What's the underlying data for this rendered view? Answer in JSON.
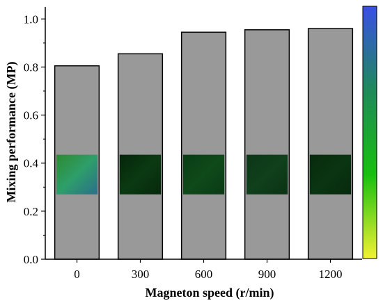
{
  "chart_data": {
    "type": "bar",
    "categories": [
      "0",
      "300",
      "600",
      "900",
      "1200"
    ],
    "values": [
      0.805,
      0.855,
      0.945,
      0.955,
      0.96
    ],
    "xlabel": "Magneton speed (r/min)",
    "ylabel": "Mixing performance (MP)",
    "ylim": [
      0.0,
      1.05
    ],
    "yticks": [
      "0.0",
      "0.2",
      "0.4",
      "0.6",
      "0.8",
      "1.0"
    ],
    "grid": false,
    "bar_color": "#999999",
    "colorbar": {
      "colors": [
        "#f2f233",
        "#17c00f",
        "#1f8a5a",
        "#3a4fe6"
      ]
    },
    "insets": [
      {
        "category": "0",
        "colors": [
          "#2e8a30",
          "#2e9e6a",
          "#2a6f8a"
        ]
      },
      {
        "category": "300",
        "colors": [
          "#05240a",
          "#0b3a12",
          "#06280c"
        ]
      },
      {
        "category": "600",
        "colors": [
          "#0a3c14",
          "#0f4a1a",
          "#0a3a15"
        ]
      },
      {
        "category": "900",
        "colors": [
          "#0d3616",
          "#10401c",
          "#0b3315"
        ]
      },
      {
        "category": "1200",
        "colors": [
          "#062a0c",
          "#0a3512",
          "#062a0d"
        ]
      }
    ]
  }
}
